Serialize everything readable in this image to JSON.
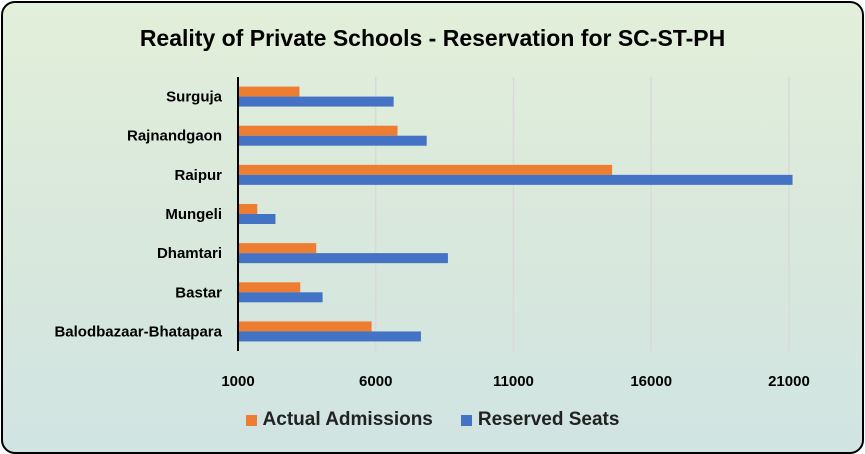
{
  "chart_data": {
    "type": "bar",
    "orientation": "horizontal",
    "title": "Reality of Private Schools - Reservation for SC-ST-PH",
    "categories": [
      "Balodbazaar-Bhatapara",
      "Bastar",
      "Dhamtari",
      "Mungeli",
      "Raipur",
      "Rajnandgaon",
      "Surguja"
    ],
    "series": [
      {
        "name": "Actual Admissions",
        "color": "#ed7d31",
        "values": [
          5850,
          3260,
          3840,
          1700,
          14580,
          6790,
          3230
        ]
      },
      {
        "name": "Reserved Seats",
        "color": "#4472c4",
        "values": [
          7640,
          4070,
          8620,
          2360,
          21130,
          7850,
          6650
        ]
      }
    ],
    "xticks": [
      1000,
      6000,
      11000,
      16000,
      21000
    ],
    "xlim": [
      1000,
      22000
    ],
    "grid": "vertical",
    "legend": "bottom"
  }
}
